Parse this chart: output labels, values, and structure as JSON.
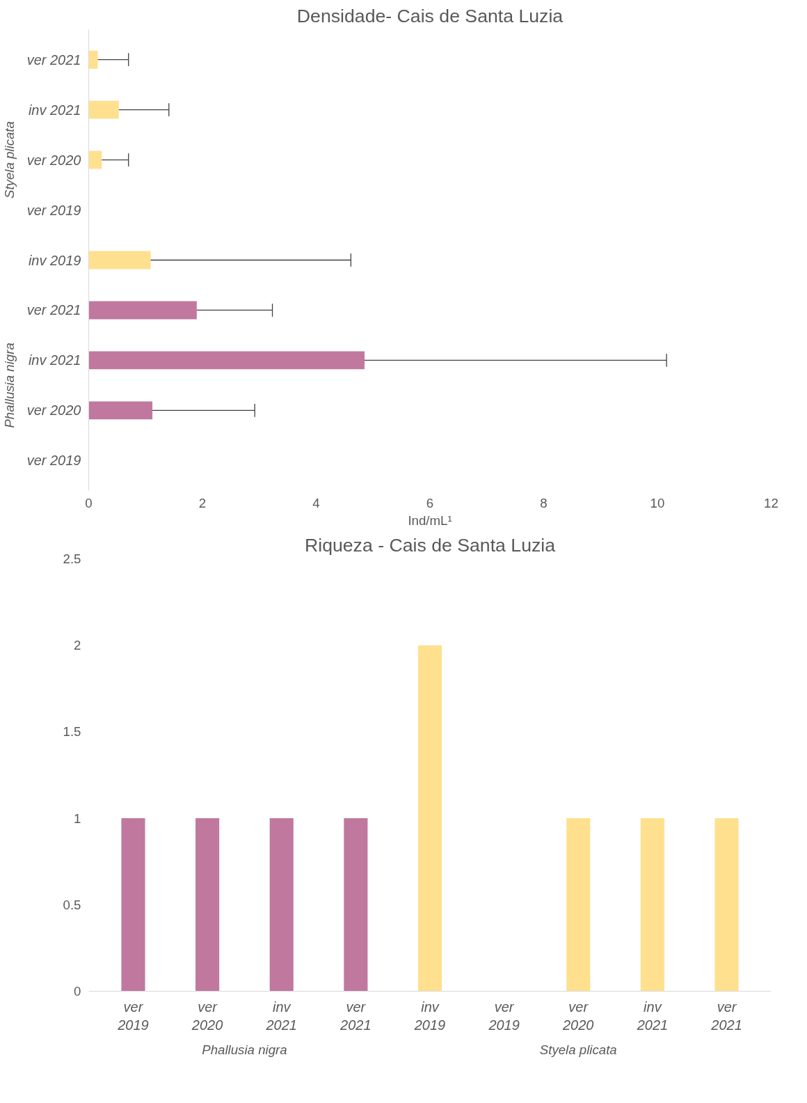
{
  "chart_data": [
    {
      "type": "bar",
      "orientation": "horizontal",
      "title": "Densidade- Cais de Santa Luzia",
      "xlabel": "Ind/mL¹",
      "categories": [
        "ver 2021",
        "inv 2021",
        "ver 2020",
        "ver 2019",
        "inv 2019",
        "ver 2021",
        "inv 2021",
        "ver 2020",
        "ver 2019"
      ],
      "values": [
        0.16,
        0.53,
        0.23,
        0,
        1.09,
        1.9,
        4.85,
        1.12,
        0
      ],
      "colors": [
        "#ffe08f",
        "#ffe08f",
        "#ffe08f",
        "#ffe08f",
        "#ffe08f",
        "#c0789f",
        "#c0789f",
        "#c0789f",
        "#c0789f"
      ],
      "errors": [
        [
          0.16,
          0.7
        ],
        [
          0.53,
          1.41
        ],
        [
          0.23,
          0.7
        ],
        null,
        [
          1.09,
          4.61
        ],
        [
          1.9,
          3.23
        ],
        [
          4.85,
          10.16
        ],
        [
          1.12,
          2.92
        ],
        null
      ],
      "xlim": [
        0,
        12
      ],
      "xticks": [
        0,
        2,
        4,
        6,
        8,
        10,
        12
      ],
      "annotations": [
        "Styela plicata",
        "Phallusia nigra"
      ],
      "grid": false
    },
    {
      "type": "bar",
      "title": "Riqueza - Cais de Santa Luzia",
      "categories": [
        "ver 2019",
        "ver 2020",
        "inv 2021",
        "ver 2021",
        "inv 2019",
        "ver 2019",
        "ver 2020",
        "inv 2021",
        "ver 2021"
      ],
      "values": [
        1,
        1,
        1,
        1,
        2,
        0,
        1,
        1,
        1
      ],
      "colors": [
        "#c0789f",
        "#c0789f",
        "#c0789f",
        "#c0789f",
        "#ffe08f",
        "#ffe08f",
        "#ffe08f",
        "#ffe08f",
        "#ffe08f"
      ],
      "ylim": [
        0,
        2.5
      ],
      "yticks": [
        0,
        0.5,
        1,
        1.5,
        2,
        2.5
      ],
      "annotations": [
        "Phallusia nigra",
        "Styela plicata"
      ],
      "grid": false
    }
  ]
}
